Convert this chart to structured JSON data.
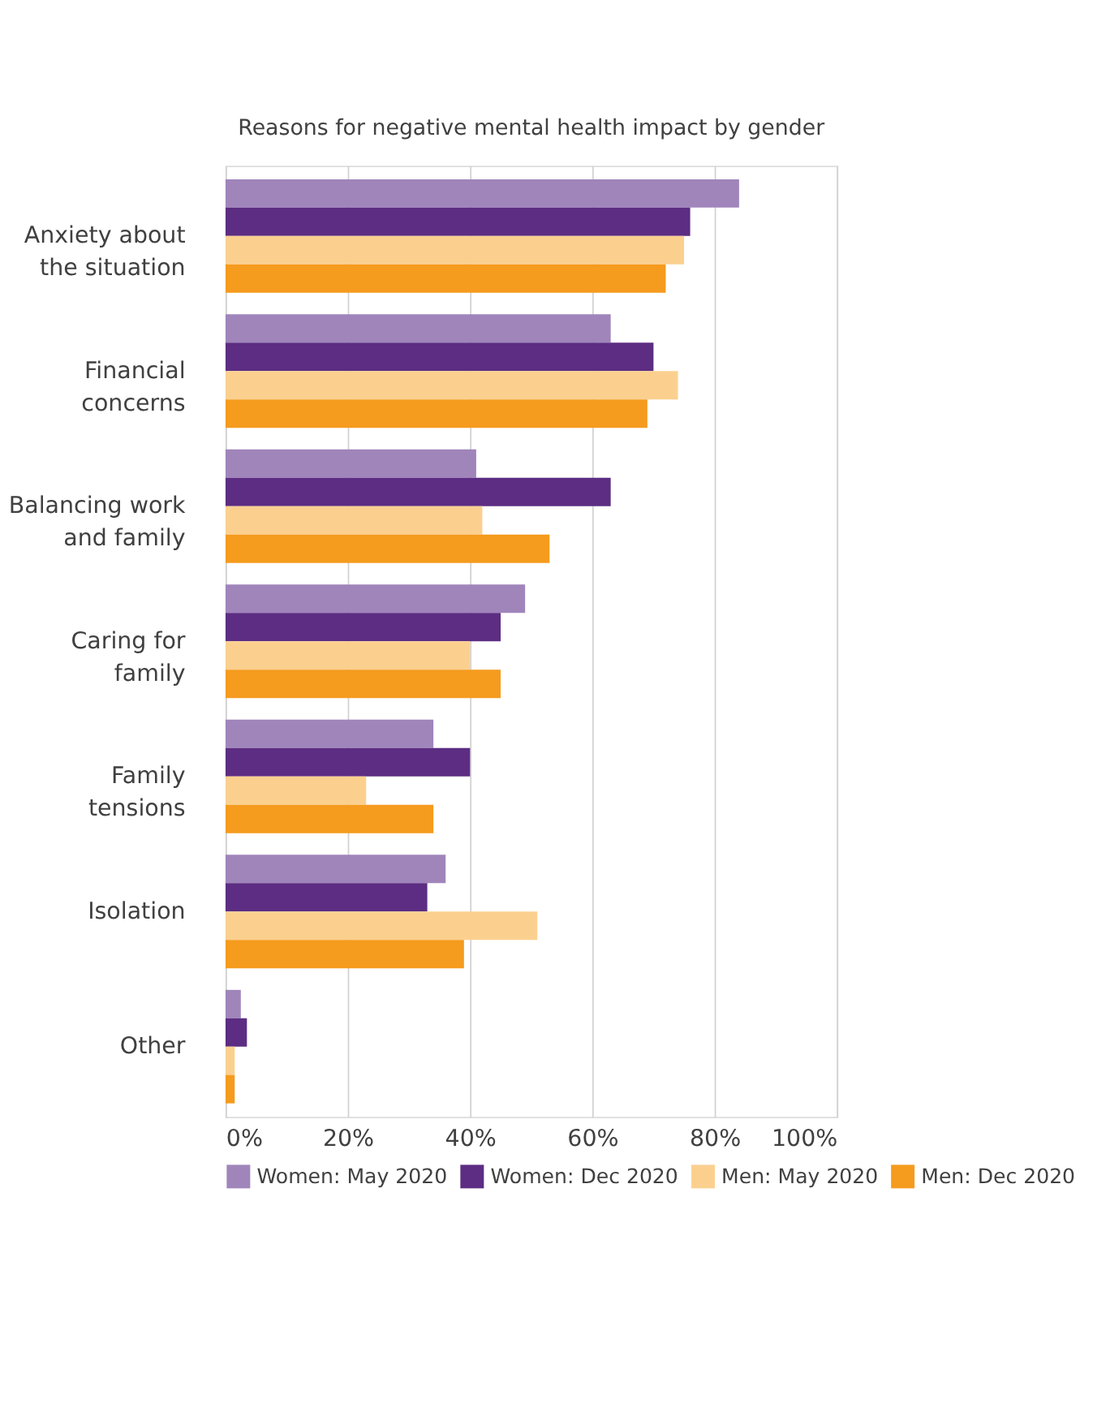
{
  "chart_data": {
    "type": "bar",
    "orientation": "horizontal",
    "title": "Reasons for negative mental health impact by gender",
    "categories": [
      "Anxiety about the situation",
      "Financial concerns",
      "Balancing work and family",
      "Caring for family",
      "Family tensions",
      "Isolation",
      "Other"
    ],
    "series": [
      {
        "name": "Women: May 2020",
        "color": "#a085bb",
        "values": [
          84,
          63,
          41,
          49,
          34,
          36,
          2.5
        ]
      },
      {
        "name": "Women: Dec 2020",
        "color": "#5c2d82",
        "values": [
          76,
          70,
          63,
          45,
          40,
          33,
          3.5
        ]
      },
      {
        "name": "Men: May 2020",
        "color": "#fbd08f",
        "values": [
          75,
          74,
          42,
          40,
          23,
          51,
          1.5
        ]
      },
      {
        "name": "Men: Dec 2020",
        "color": "#f59b1e",
        "values": [
          72,
          69,
          53,
          45,
          34,
          39,
          1.5
        ]
      }
    ],
    "xlim": [
      0,
      100
    ],
    "xticks": [
      {
        "value": 0,
        "label": "0%"
      },
      {
        "value": 20,
        "label": "20%"
      },
      {
        "value": 40,
        "label": "40%"
      },
      {
        "value": 60,
        "label": "60%"
      },
      {
        "value": 80,
        "label": "80%"
      },
      {
        "value": 100,
        "label": "100%"
      }
    ],
    "grid": "x",
    "legend": "bottom"
  }
}
